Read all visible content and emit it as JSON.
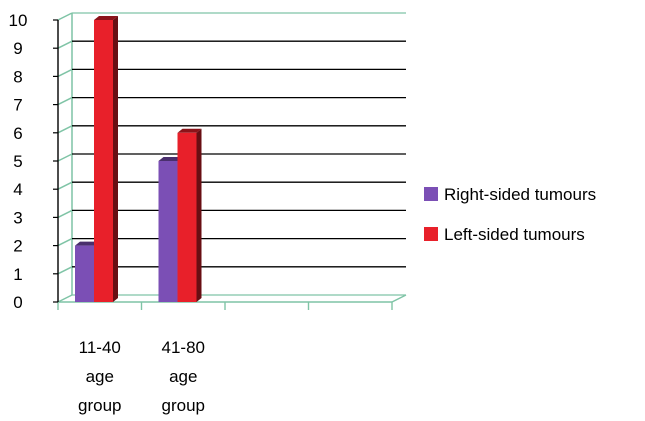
{
  "chart_data": {
    "type": "bar",
    "title": "",
    "xlabel": "",
    "ylabel": "",
    "ylim": [
      0,
      10
    ],
    "yticks": [
      0,
      1,
      2,
      3,
      4,
      5,
      6,
      7,
      8,
      9,
      10
    ],
    "categories": [
      [
        "11-40",
        "age",
        "group"
      ],
      [
        "41-80",
        "age",
        "group"
      ],
      "",
      ""
    ],
    "series": [
      {
        "name": "Right-sided tumours",
        "values": [
          2,
          5,
          null,
          null
        ],
        "color": "#7b4fb5"
      },
      {
        "name": "Left-sided tumours",
        "values": [
          10,
          6,
          null,
          null
        ],
        "color": "#e8202a"
      }
    ],
    "grid": true,
    "gridline_color": "#000000",
    "wall_color": "#7fc4a6",
    "legend": "right"
  }
}
